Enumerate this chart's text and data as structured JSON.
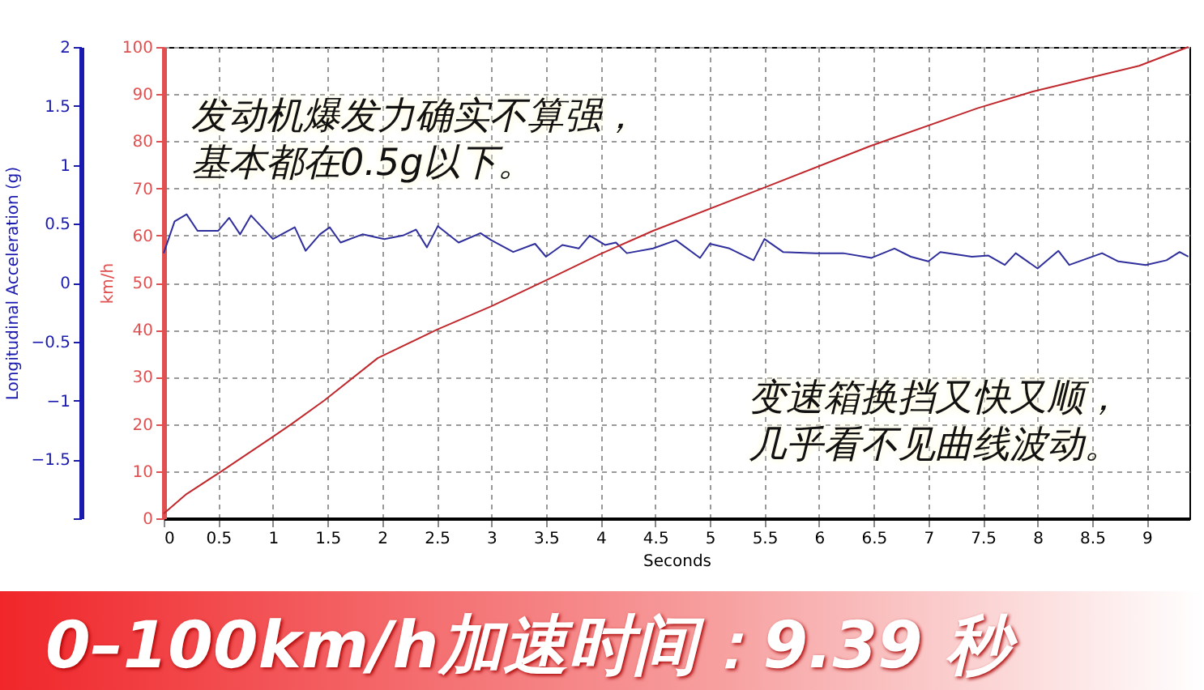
{
  "chart_data": {
    "type": "line",
    "xlabel": "Seconds",
    "ylabel": "Longitudinal Acceleration (g)",
    "y2label": "km/h",
    "xlim": [
      0,
      9.39
    ],
    "xticks": [
      0,
      0.5,
      1,
      1.5,
      2,
      2.5,
      3,
      3.5,
      4,
      4.5,
      5,
      5.5,
      6,
      6.5,
      7,
      7.5,
      8,
      8.5,
      9
    ],
    "ylim": [
      -2,
      2
    ],
    "yticks": [
      {
        "value": -2,
        "label": null
      },
      -1.5,
      -1,
      -0.5,
      0,
      0.5,
      1,
      1.5,
      2
    ],
    "y2lim": [
      0,
      100
    ],
    "y2ticks": [
      0,
      10,
      20,
      30,
      40,
      50,
      60,
      70,
      80,
      90,
      100
    ],
    "grid": true,
    "series": [
      {
        "color": "#2e2e9c",
        "x": [
          0,
          0.1,
          0.21,
          0.31,
          0.5,
          0.6,
          0.7,
          0.8,
          1.0,
          1.2,
          1.3,
          1.43,
          1.52,
          1.62,
          1.82,
          2.02,
          2.19,
          2.31,
          2.41,
          2.51,
          2.7,
          2.9,
          3.0,
          3.2,
          3.4,
          3.5,
          3.65,
          3.8,
          3.9,
          4.04,
          4.14,
          4.24,
          4.48,
          4.69,
          4.91,
          5.0,
          5.18,
          5.4,
          5.5,
          5.67,
          5.97,
          6.22,
          6.48,
          6.69,
          6.84,
          7.0,
          7.11,
          7.4,
          7.55,
          7.7,
          7.8,
          8.0,
          8.19,
          8.29,
          8.59,
          8.74,
          8.99,
          9.18,
          9.3,
          9.38
        ],
        "values": [
          0.25,
          0.52,
          0.58,
          0.44,
          0.44,
          0.55,
          0.41,
          0.57,
          0.37,
          0.47,
          0.27,
          0.41,
          0.47,
          0.34,
          0.41,
          0.37,
          0.4,
          0.45,
          0.3,
          0.48,
          0.34,
          0.42,
          0.36,
          0.26,
          0.33,
          0.22,
          0.32,
          0.29,
          0.4,
          0.32,
          0.34,
          0.25,
          0.29,
          0.36,
          0.21,
          0.33,
          0.29,
          0.19,
          0.37,
          0.26,
          0.25,
          0.25,
          0.21,
          0.29,
          0.22,
          0.18,
          0.26,
          0.22,
          0.23,
          0.15,
          0.25,
          0.12,
          0.27,
          0.15,
          0.25,
          0.18,
          0.15,
          0.19,
          0.26,
          0.22
        ]
      },
      {
        "color": "#c0282d",
        "axis": "y2",
        "x": [
          0,
          0.2,
          0.53,
          0.98,
          1.17,
          1.47,
          1.96,
          2.5,
          3.0,
          3.5,
          3.99,
          4.48,
          5.48,
          6.47,
          7.45,
          7.95,
          8.93,
          9.38
        ],
        "values": [
          1,
          5,
          10,
          17,
          20,
          25,
          34,
          40,
          45,
          50.5,
          56,
          61,
          70,
          79,
          87,
          90.5,
          96,
          100
        ]
      }
    ],
    "annotations": [
      "发动机爆发力确实不算强，基本都在0.5g以下。",
      "变速箱换挡又快又顺，几乎看不见曲线波动。",
      "0–100km/h加速时间：9.39 秒"
    ]
  }
}
